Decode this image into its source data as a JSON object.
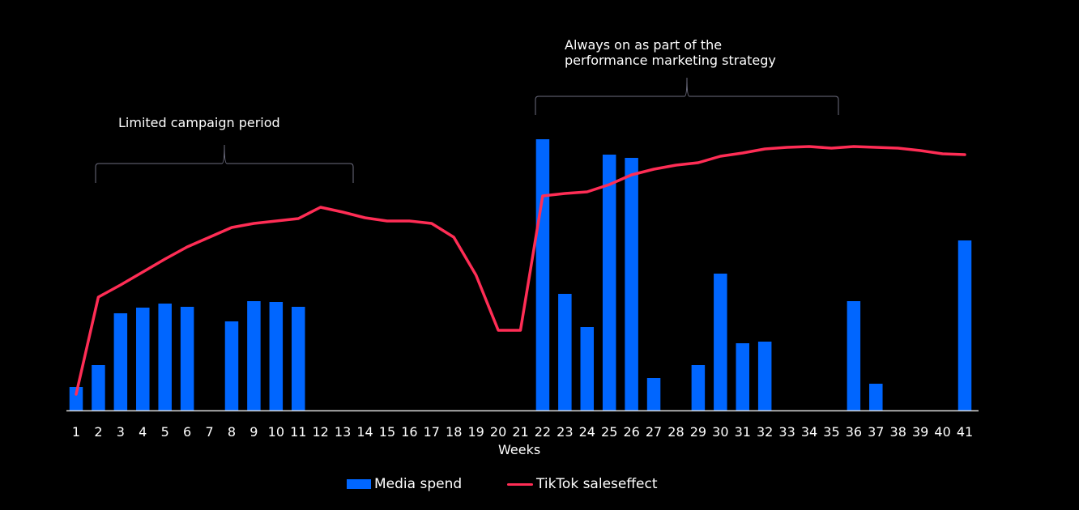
{
  "chart_data": {
    "type": "bar+line",
    "title": "",
    "xlabel": "Weeks",
    "ylabel": "",
    "categories": [
      "1",
      "2",
      "3",
      "4",
      "5",
      "6",
      "7",
      "8",
      "9",
      "10",
      "11",
      "12",
      "13",
      "14",
      "15",
      "16",
      "17",
      "18",
      "19",
      "20",
      "21",
      "22",
      "23",
      "24",
      "25",
      "26",
      "27",
      "28",
      "29",
      "30",
      "31",
      "32",
      "33",
      "34",
      "35",
      "36",
      "37",
      "38",
      "39",
      "40",
      "41"
    ],
    "ylim": [
      0,
      100
    ],
    "grid": false,
    "legend_position": "bottom",
    "series": [
      {
        "name": "Media spend",
        "type": "bar",
        "color": "#0066ff",
        "values": [
          7.25,
          14,
          30,
          31.75,
          33,
          32,
          0,
          27.5,
          33.75,
          33.5,
          32,
          0,
          0,
          0,
          0,
          0,
          0,
          0,
          0,
          0,
          0,
          83.75,
          36,
          25.75,
          79,
          78,
          10,
          0,
          14,
          42.25,
          20.75,
          21.25,
          0,
          0,
          0,
          33.75,
          8.25,
          0,
          0,
          0,
          52.5
        ]
      },
      {
        "name": "TikTok saleseffect",
        "type": "line",
        "color": "#ff2d55",
        "values": [
          5,
          35,
          38.75,
          42.75,
          46.75,
          50.5,
          53.5,
          56.5,
          57.75,
          58.5,
          59.25,
          62.75,
          61.25,
          59.5,
          58.5,
          58.5,
          57.75,
          53.5,
          41.75,
          24.75,
          24.75,
          66.25,
          67,
          67.5,
          69.75,
          72.75,
          74.5,
          75.75,
          76.5,
          78.5,
          79.5,
          80.75,
          81.25,
          81.5,
          81,
          81.5,
          81.25,
          81,
          80.25,
          79.25,
          79
        ]
      }
    ],
    "annotations": [
      {
        "text": "Limited campaign period",
        "from_week": "2",
        "to_week": "13"
      },
      {
        "text_line1": "Always on as part of the",
        "text_line2": "performance marketing strategy",
        "from_week": "22",
        "to_week": "35"
      }
    ]
  }
}
